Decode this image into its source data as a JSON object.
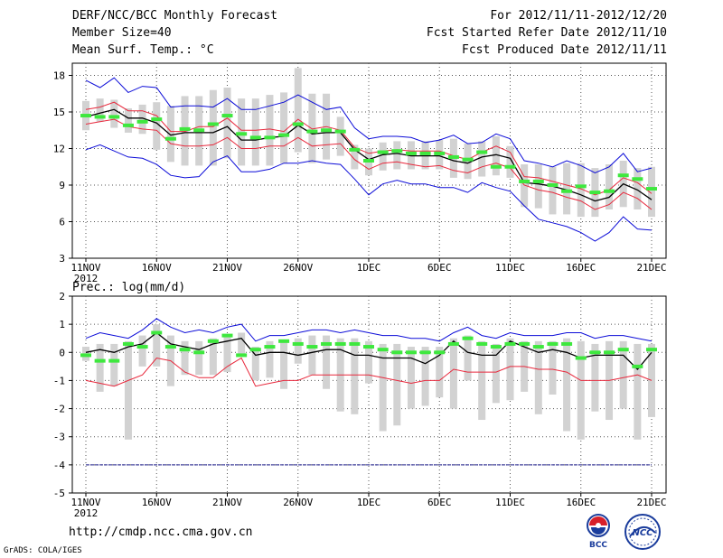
{
  "header": {
    "title": "DERF/NCC/BCC Monthly Forecast",
    "member_size": "Member Size=40",
    "variable": "Mean Surf. Temp.: °C",
    "period": "For 2012/11/11-2012/12/20",
    "started": "Fcst Started Refer Date 2012/11/10",
    "produced": "Fcst Produced Date 2012/11/11"
  },
  "footer": {
    "url": "http://cmdp.ncc.cma.gov.cn",
    "credit": "GrADS: COLA/IGES"
  },
  "logos": {
    "bcc_text": "BCC",
    "ncc_text": "NCC"
  },
  "colors": {
    "median": "#000000",
    "red_band": "#e8283c",
    "blue_band": "#0c0cd8",
    "obs": "#3ee83e",
    "box": "#d2d2d2",
    "threshold": "#1c1c8c",
    "grid": "#555555"
  },
  "chart_data": [
    {
      "type": "line",
      "title": "Mean Surf. Temp.: °C",
      "xlabel": "",
      "ylabel": "",
      "x_tick_labels": [
        "11NOV",
        "16NOV",
        "21NOV",
        "26NOV",
        "1DEC",
        "6DEC",
        "11DEC",
        "16DEC",
        "21DEC"
      ],
      "x_year_label": "2012",
      "xlim": [
        0,
        40
      ],
      "ylim": [
        3,
        19
      ],
      "y_ticks": [
        3,
        6,
        9,
        12,
        15,
        18
      ],
      "grid": true,
      "series": [
        {
          "name": "max",
          "values": [
            11.9,
            12.3,
            11.8,
            11.3,
            11.2,
            10.7,
            9.8,
            9.6,
            9.7,
            10.9,
            11.4,
            10.1,
            10.1,
            10.3,
            10.8,
            10.8,
            11.0,
            10.8,
            10.7,
            9.5,
            8.2,
            9.1,
            9.4,
            9.1,
            9.1,
            8.8,
            8.8,
            8.4,
            9.2,
            8.8,
            8.5,
            7.3,
            6.2,
            5.9,
            5.6,
            5.1,
            4.4,
            5.1,
            6.4,
            5.4,
            5.3
          ]
        },
        {
          "name": "p25",
          "values": [
            14.0,
            14.2,
            14.4,
            13.8,
            13.6,
            13.5,
            12.4,
            12.2,
            12.2,
            12.3,
            12.9,
            12.0,
            12.0,
            12.2,
            12.2,
            12.9,
            12.2,
            12.3,
            12.4,
            11.1,
            10.3,
            10.8,
            10.9,
            10.7,
            10.5,
            10.6,
            10.2,
            10.0,
            10.5,
            10.8,
            10.4,
            9.0,
            8.6,
            8.4,
            8.0,
            7.7,
            7.0,
            7.4,
            8.4,
            7.9,
            7.0
          ]
        },
        {
          "name": "median",
          "values": [
            14.6,
            14.9,
            15.2,
            14.5,
            14.5,
            14.1,
            13.1,
            13.3,
            13.3,
            13.3,
            13.8,
            12.7,
            12.7,
            12.9,
            13.0,
            13.9,
            13.2,
            13.3,
            13.3,
            11.9,
            11.1,
            11.5,
            11.6,
            11.4,
            11.4,
            11.4,
            11.0,
            10.8,
            11.3,
            11.5,
            11.2,
            9.2,
            9.1,
            8.9,
            8.6,
            8.2,
            7.7,
            8.0,
            9.1,
            8.6,
            7.8
          ]
        },
        {
          "name": "p75",
          "values": [
            15.2,
            15.4,
            15.8,
            15.1,
            15.1,
            14.7,
            13.4,
            13.4,
            13.8,
            13.8,
            14.5,
            13.5,
            13.5,
            13.6,
            13.4,
            14.4,
            13.6,
            13.8,
            13.5,
            12.1,
            11.6,
            11.8,
            11.9,
            11.8,
            11.8,
            11.8,
            11.4,
            11.1,
            11.7,
            12.2,
            11.7,
            9.7,
            9.6,
            9.3,
            9.0,
            8.7,
            8.2,
            8.6,
            9.6,
            9.2,
            8.3
          ]
        },
        {
          "name": "min",
          "values": [
            17.6,
            17.0,
            17.8,
            16.6,
            17.1,
            17.0,
            15.4,
            15.5,
            15.5,
            15.4,
            16.1,
            15.2,
            15.2,
            15.5,
            15.8,
            16.4,
            15.8,
            15.2,
            15.4,
            13.7,
            12.8,
            13.0,
            13.0,
            12.9,
            12.5,
            12.7,
            13.1,
            12.4,
            12.5,
            13.2,
            12.8,
            11.0,
            10.8,
            10.5,
            11.0,
            10.6,
            10.0,
            10.5,
            11.6,
            10.1,
            10.4
          ]
        },
        {
          "name": "observed",
          "values": [
            14.7,
            14.6,
            14.6,
            13.9,
            14.2,
            14.4,
            12.8,
            13.6,
            13.5,
            14.0,
            14.7,
            13.2,
            12.9,
            12.9,
            13.1,
            14.0,
            13.4,
            13.5,
            13.4,
            11.9,
            11.0,
            11.7,
            11.8,
            11.6,
            11.6,
            11.6,
            11.3,
            11.1,
            11.7,
            10.5,
            10.5,
            9.3,
            9.3,
            9.0,
            8.5,
            8.9,
            8.4,
            8.5,
            9.8,
            9.5,
            8.7
          ]
        },
        {
          "name": "ensemble_low",
          "values": [
            13.5,
            14.2,
            13.7,
            13.3,
            13.2,
            11.9,
            10.9,
            10.6,
            10.6,
            10.6,
            11.2,
            10.6,
            10.6,
            10.6,
            10.8,
            11.7,
            10.8,
            11.1,
            11.4,
            10.3,
            9.8,
            10.2,
            10.3,
            10.3,
            10.3,
            10.3,
            9.6,
            9.5,
            9.7,
            9.8,
            9.6,
            7.2,
            7.1,
            6.6,
            6.6,
            6.4,
            6.4,
            7.0,
            7.2,
            7.0,
            6.4
          ]
        },
        {
          "name": "ensemble_high",
          "values": [
            15.9,
            16.1,
            16.0,
            15.3,
            15.6,
            15.8,
            15.5,
            16.3,
            16.3,
            16.8,
            17.0,
            16.1,
            16.1,
            16.4,
            16.6,
            18.6,
            16.5,
            16.5,
            14.6,
            12.3,
            12.0,
            12.5,
            12.6,
            12.6,
            12.6,
            12.7,
            12.8,
            12.4,
            12.6,
            13.0,
            12.2,
            10.7,
            10.7,
            10.5,
            10.8,
            10.8,
            10.4,
            10.7,
            11.0,
            10.4,
            10.5
          ]
        }
      ]
    },
    {
      "type": "line",
      "title": "Prec.: log(mm/d)",
      "xlabel": "",
      "ylabel": "",
      "x_tick_labels": [
        "11NOV",
        "16NOV",
        "21NOV",
        "26NOV",
        "1DEC",
        "6DEC",
        "11DEC",
        "16DEC",
        "21DEC"
      ],
      "x_year_label": "2012",
      "xlim": [
        0,
        40
      ],
      "ylim": [
        -5,
        2
      ],
      "y_ticks": [
        -5,
        -4,
        -3,
        -2,
        -1,
        0,
        1,
        2
      ],
      "grid": true,
      "threshold": -4,
      "series": [
        {
          "name": "upper",
          "values": [
            0.5,
            0.7,
            0.6,
            0.5,
            0.8,
            1.2,
            0.9,
            0.7,
            0.8,
            0.7,
            0.9,
            1.0,
            0.4,
            0.6,
            0.6,
            0.7,
            0.8,
            0.8,
            0.7,
            0.8,
            0.7,
            0.6,
            0.6,
            0.5,
            0.5,
            0.4,
            0.7,
            0.9,
            0.6,
            0.5,
            0.7,
            0.6,
            0.6,
            0.6,
            0.7,
            0.7,
            0.5,
            0.6,
            0.6,
            0.5,
            0.4
          ]
        },
        {
          "name": "median",
          "values": [
            0.0,
            0.1,
            0.0,
            0.2,
            0.3,
            0.7,
            0.3,
            0.2,
            0.1,
            0.3,
            0.4,
            0.5,
            -0.1,
            0.0,
            0.0,
            -0.1,
            0.0,
            0.1,
            0.1,
            -0.1,
            -0.1,
            -0.2,
            -0.2,
            -0.2,
            -0.4,
            -0.1,
            0.4,
            0.0,
            -0.1,
            -0.1,
            0.4,
            0.2,
            0.0,
            0.1,
            0.0,
            -0.2,
            -0.1,
            -0.1,
            -0.1,
            -0.6,
            0.0
          ]
        },
        {
          "name": "lower",
          "values": [
            -1.0,
            -1.1,
            -1.2,
            -1.0,
            -0.8,
            -0.2,
            -0.3,
            -0.7,
            -0.9,
            -0.9,
            -0.5,
            -0.2,
            -1.2,
            -1.1,
            -1.0,
            -1.0,
            -0.8,
            -0.8,
            -0.8,
            -0.8,
            -0.8,
            -0.9,
            -1.0,
            -1.1,
            -1.0,
            -1.0,
            -0.6,
            -0.7,
            -0.7,
            -0.7,
            -0.5,
            -0.5,
            -0.6,
            -0.6,
            -0.7,
            -1.0,
            -1.0,
            -1.0,
            -0.9,
            -0.8,
            -1.0
          ]
        },
        {
          "name": "observed",
          "values": [
            -0.1,
            -0.3,
            -0.3,
            0.3,
            0.2,
            0.7,
            0.2,
            0.1,
            0.0,
            0.4,
            0.6,
            -0.1,
            0.1,
            0.2,
            0.4,
            0.3,
            0.2,
            0.3,
            0.3,
            0.3,
            0.2,
            0.1,
            0.0,
            0.0,
            0.0,
            0.0,
            0.3,
            0.5,
            0.3,
            0.2,
            0.3,
            0.3,
            0.2,
            0.3,
            0.3,
            -0.2,
            0.0,
            0.0,
            0.1,
            -0.5,
            0.1
          ]
        },
        {
          "name": "ensemble_low",
          "values": [
            -0.3,
            -1.4,
            -1.2,
            -3.1,
            -0.5,
            -0.5,
            -1.2,
            -0.8,
            -0.8,
            -0.8,
            -0.7,
            -0.1,
            -1.0,
            -0.9,
            -1.3,
            -0.4,
            -0.8,
            -1.3,
            -2.1,
            -2.2,
            -1.1,
            -2.8,
            -2.6,
            -2.0,
            -1.9,
            -1.6,
            -2.0,
            -1.0,
            -2.4,
            -1.8,
            -1.7,
            -1.4,
            -2.2,
            -1.5,
            -2.8,
            -3.1,
            -2.1,
            -2.4,
            -2.0,
            -3.1,
            -2.3
          ]
        },
        {
          "name": "ensemble_high",
          "values": [
            0.2,
            0.3,
            0.3,
            0.4,
            0.6,
            1.0,
            0.6,
            0.4,
            0.4,
            0.5,
            0.6,
            0.7,
            0.2,
            0.4,
            0.4,
            0.5,
            0.6,
            0.6,
            0.5,
            0.5,
            0.4,
            0.3,
            0.3,
            0.2,
            0.2,
            0.2,
            0.5,
            0.6,
            0.4,
            0.3,
            0.5,
            0.4,
            0.4,
            0.4,
            0.5,
            0.4,
            0.3,
            0.4,
            0.4,
            0.3,
            0.3
          ]
        }
      ]
    }
  ]
}
